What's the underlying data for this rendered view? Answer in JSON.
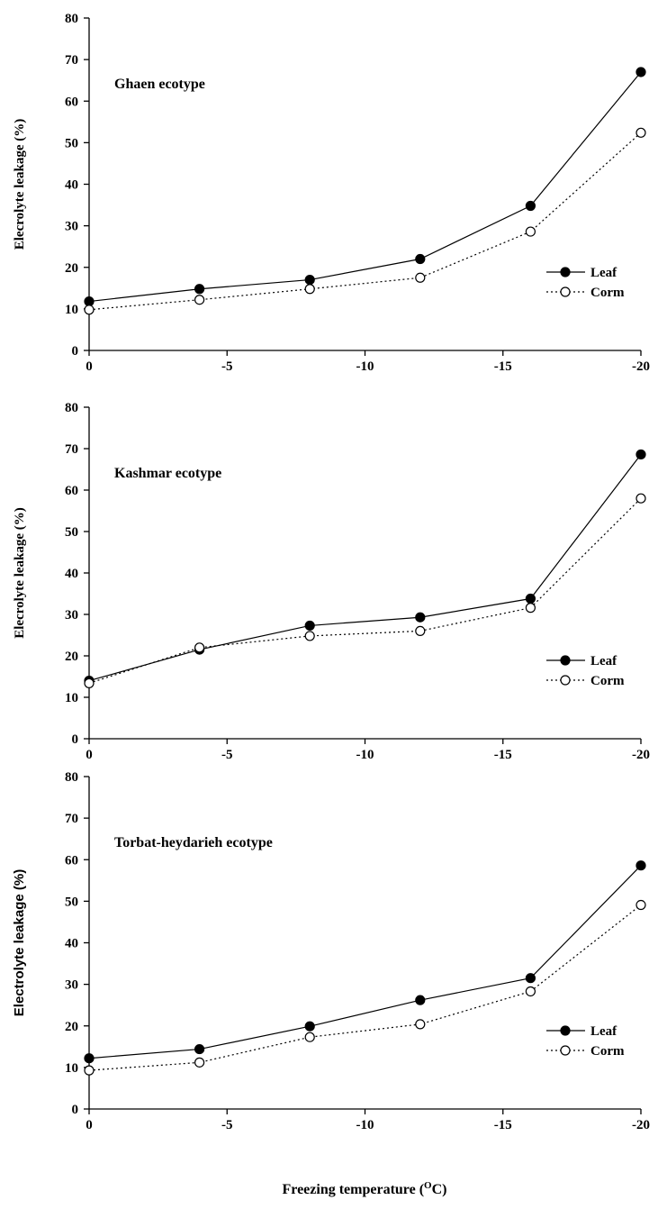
{
  "chart_data": [
    {
      "type": "line",
      "annotation": "Ghaen ecotype",
      "ylabel": "Elecrolyte leakage (%)",
      "x": [
        0,
        -4,
        -8,
        -12,
        -16,
        -20
      ],
      "xlim": [
        0,
        -20
      ],
      "xticks": [
        0,
        -5,
        -10,
        -15,
        -20
      ],
      "ylim": [
        0,
        80
      ],
      "yticks": [
        0,
        10,
        20,
        30,
        40,
        50,
        60,
        70,
        80
      ],
      "legend": "lower right",
      "series": [
        {
          "name": "Leaf",
          "color": "#000000",
          "linestyle": "solid",
          "marker_fill": "#000000",
          "values": [
            11.8,
            14.8,
            17,
            22,
            34.8,
            67
          ]
        },
        {
          "name": "Corm",
          "color": "#000000",
          "linestyle": "dotted",
          "marker_fill": "#ffffff",
          "values": [
            9.8,
            12.2,
            14.8,
            17.5,
            28.6,
            52.4
          ]
        }
      ]
    },
    {
      "type": "line",
      "annotation": "Kashmar ecotype",
      "ylabel": "Elecrolyte leakage (%)",
      "x": [
        0,
        -4,
        -8,
        -12,
        -16,
        -20
      ],
      "xlim": [
        0,
        -20
      ],
      "xticks": [
        0,
        -5,
        -10,
        -15,
        -20
      ],
      "ylim": [
        0,
        80
      ],
      "yticks": [
        0,
        10,
        20,
        30,
        40,
        50,
        60,
        70,
        80
      ],
      "legend": "lower right",
      "series": [
        {
          "name": "Leaf",
          "color": "#000000",
          "linestyle": "solid",
          "marker_fill": "#000000",
          "values": [
            14,
            21.5,
            27.3,
            29.3,
            33.8,
            68.6
          ]
        },
        {
          "name": "Corm",
          "color": "#000000",
          "linestyle": "dotted",
          "marker_fill": "#ffffff",
          "values": [
            13.4,
            22,
            24.8,
            26,
            31.6,
            58
          ]
        }
      ]
    },
    {
      "type": "line",
      "annotation": "Torbat-heydarieh ecotype",
      "ylabel": "Electrolyte leakage (%)",
      "x": [
        0,
        -4,
        -8,
        -12,
        -16,
        -20
      ],
      "xlim": [
        0,
        -20
      ],
      "xticks": [
        0,
        -5,
        -10,
        -15,
        -20
      ],
      "ylim": [
        0,
        80
      ],
      "yticks": [
        0,
        10,
        20,
        30,
        40,
        50,
        60,
        70,
        80
      ],
      "legend": "lower right",
      "series": [
        {
          "name": "Leaf",
          "color": "#000000",
          "linestyle": "solid",
          "marker_fill": "#000000",
          "values": [
            12.2,
            14.4,
            19.9,
            26.2,
            31.5,
            58.6
          ]
        },
        {
          "name": "Corm",
          "color": "#000000",
          "linestyle": "dotted",
          "marker_fill": "#ffffff",
          "values": [
            9.3,
            11.2,
            17.3,
            20.4,
            28.3,
            49.1
          ]
        }
      ]
    }
  ],
  "x_label": {
    "before": "Freezing temperature (",
    "sup": "O",
    "after": "C)"
  }
}
